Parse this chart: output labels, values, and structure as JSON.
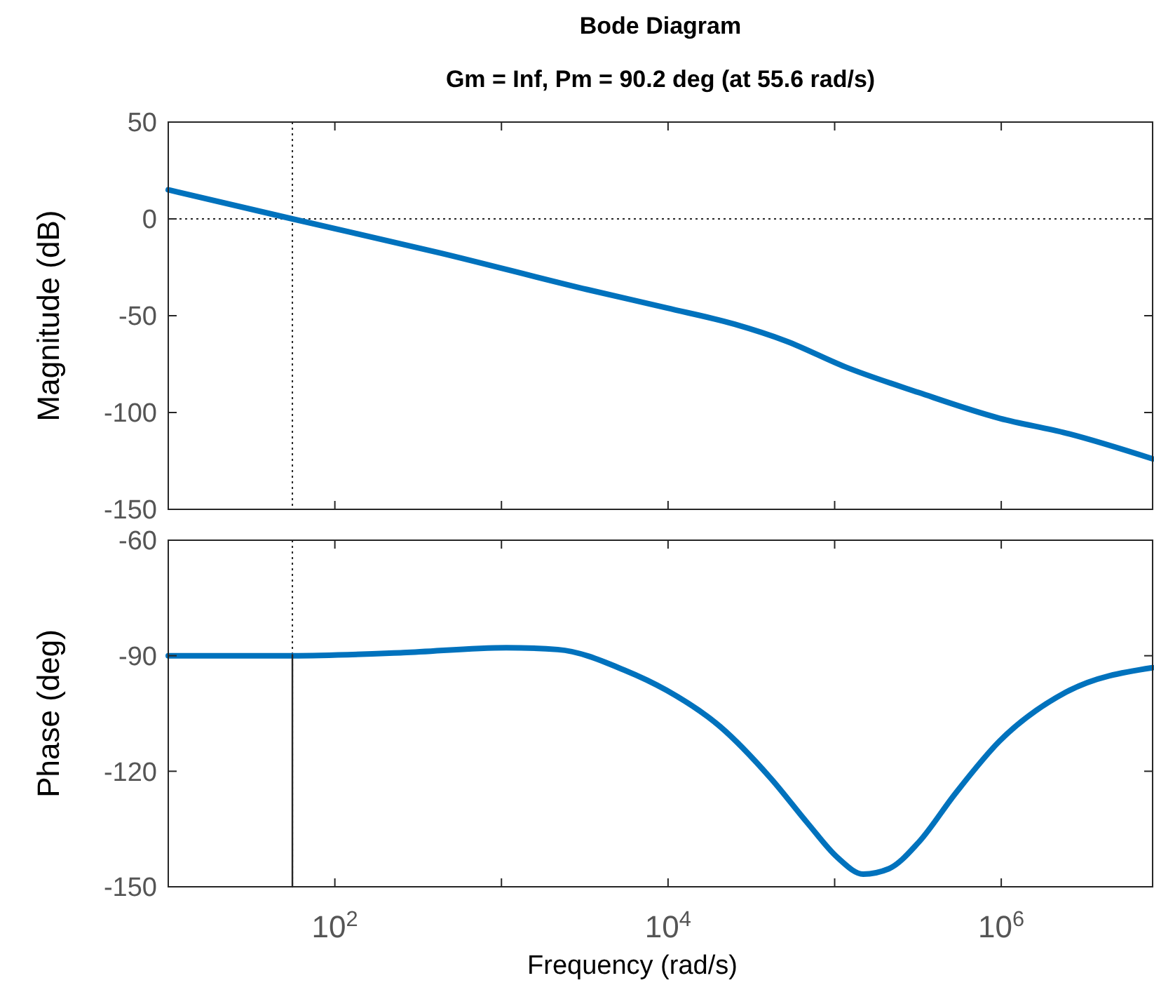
{
  "chart_data": [
    {
      "type": "line",
      "title": "Bode Diagram",
      "subtitle": "Gm = Inf,  Pm = 90.2 deg (at 55.6 rad/s)",
      "ylabel": "Magnitude (dB)",
      "log": "x",
      "tick_labels": "y",
      "xlim": [
        10,
        8100000
      ],
      "ylim": [
        -150,
        50
      ],
      "xticks": [
        {
          "value": 10,
          "label": null
        },
        {
          "value": 100,
          "label": null
        },
        {
          "value": 1000,
          "label": null
        },
        {
          "value": 10000,
          "label": null
        },
        {
          "value": 100000,
          "label": null
        },
        {
          "value": 1000000,
          "label": null
        }
      ],
      "yticks": [
        50,
        0,
        -50,
        -100,
        -150
      ],
      "ref_lines": [
        {
          "axis": "y",
          "value": 0,
          "line_style": "dotted",
          "color": "#262626"
        },
        {
          "axis": "x",
          "value": 55.6,
          "line_style": "dotted",
          "color": "#262626"
        }
      ],
      "series": [
        {
          "color": "#0072bd",
          "x": [
            10,
            55.6,
            429,
            3281,
            9817,
            25120,
            51170,
            115600,
            319900,
            979500,
            2449000,
            8100000
          ],
          "values": [
            15,
            0,
            -17.6,
            -36.5,
            -46,
            -54.4,
            -63.1,
            -76.4,
            -89.7,
            -103,
            -110.6,
            -123.9
          ]
        }
      ]
    },
    {
      "type": "line",
      "xlabel": "Frequency  (rad/s)",
      "ylabel": "Phase (deg)",
      "log": "x",
      "xlim": [
        10,
        8100000
      ],
      "ylim": [
        -150,
        -60
      ],
      "xticks": [
        {
          "value": 10,
          "label": null
        },
        {
          "value": 100,
          "label": "10$^{2}$"
        },
        {
          "value": 1000,
          "label": null
        },
        {
          "value": 10000,
          "label": "10$^{4}$"
        },
        {
          "value": 100000,
          "label": null
        },
        {
          "value": 1000000,
          "label": "10$^{6}$"
        }
      ],
      "yticks": [
        -60,
        -90,
        -120,
        -150
      ],
      "ref_lines": [
        {
          "axis": "x",
          "value": 55.6,
          "line_style": "dotted",
          "color": "#262626"
        }
      ],
      "series": [
        {
          "color": "#0072bd",
          "x": [
            10,
            55.6,
            257,
            1069,
            2178,
            5445,
            9817,
            20420,
            41690,
            69180,
            104000,
            148300,
            211800,
            318400,
            529700,
            975000,
            2438000,
            8090000
          ],
          "values": [
            -90,
            -90,
            -89.2,
            -87.9,
            -88.4,
            -93.7,
            -99,
            -108.3,
            -122,
            -133.6,
            -142.4,
            -146.7,
            -145.3,
            -138.5,
            -125.8,
            -112.2,
            -99.5,
            -93.1
          ]
        },
        {
          "color": "#262626",
          "x": [
            55.6,
            55.6
          ],
          "values": [
            -150,
            -89.8
          ]
        }
      ]
    }
  ]
}
